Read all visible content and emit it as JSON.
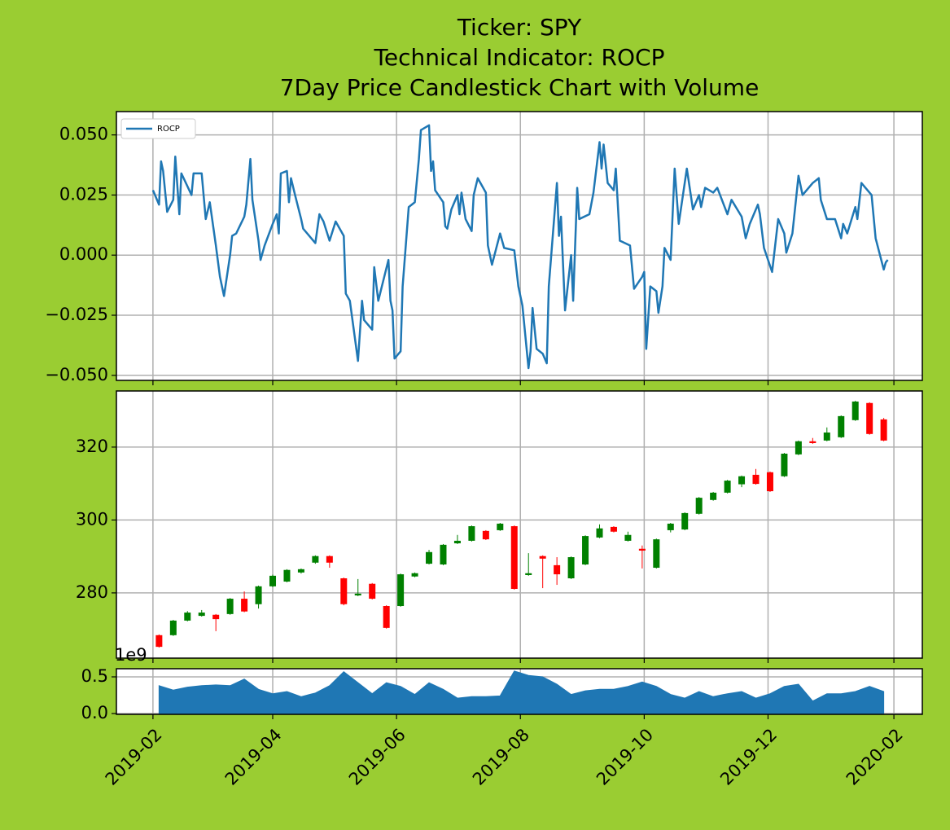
{
  "chart_data": [
    {
      "type": "line",
      "title": [
        "Ticker: SPY",
        "Technical Indicator: ROCP",
        "7Day Price Candlestick Chart with Volume"
      ],
      "legend": "upper left",
      "grid": true,
      "xtick_labels": false,
      "xlim": [
        "2019-01-14",
        "2020-02-15"
      ],
      "xticks": [
        "2019-02",
        "2019-04",
        "2019-06",
        "2019-08",
        "2019-10",
        "2019-12",
        "2020-02"
      ],
      "ylim": [
        -0.0521,
        0.0597
      ],
      "yticks": [
        {
          "value": -0.05,
          "label": "−0.050"
        },
        {
          "value": -0.025,
          "label": "−0.025"
        },
        {
          "value": 0,
          "label": "0.000"
        },
        {
          "value": 0.025,
          "label": "0.025"
        },
        {
          "value": 0.05,
          "label": "0.050"
        }
      ],
      "x": [
        "2019-02-01",
        "2019-02-04",
        "2019-02-05",
        "2019-02-06",
        "2019-02-08",
        "2019-02-11",
        "2019-02-12",
        "2019-02-14",
        "2019-02-15",
        "2019-02-20",
        "2019-02-21",
        "2019-02-25",
        "2019-02-27",
        "2019-03-01",
        "2019-03-04",
        "2019-03-06",
        "2019-03-08",
        "2019-03-11",
        "2019-03-12",
        "2019-03-14",
        "2019-03-18",
        "2019-03-19",
        "2019-03-21",
        "2019-03-22",
        "2019-03-25",
        "2019-03-26",
        "2019-03-28",
        "2019-04-01",
        "2019-04-03",
        "2019-04-04",
        "2019-04-05",
        "2019-04-08",
        "2019-04-09",
        "2019-04-10",
        "2019-04-12",
        "2019-04-15",
        "2019-04-16",
        "2019-04-22",
        "2019-04-24",
        "2019-04-26",
        "2019-04-29",
        "2019-05-02",
        "2019-05-06",
        "2019-05-07",
        "2019-05-09",
        "2019-05-13",
        "2019-05-15",
        "2019-05-16",
        "2019-05-20",
        "2019-05-21",
        "2019-05-23",
        "2019-05-28",
        "2019-05-29",
        "2019-05-30",
        "2019-05-31",
        "2019-06-03",
        "2019-06-04",
        "2019-06-05",
        "2019-06-07",
        "2019-06-10",
        "2019-06-12",
        "2019-06-13",
        "2019-06-17",
        "2019-06-18",
        "2019-06-19",
        "2019-06-20",
        "2019-06-24",
        "2019-06-25",
        "2019-06-26",
        "2019-06-28",
        "2019-07-01",
        "2019-07-02",
        "2019-07-03",
        "2019-07-05",
        "2019-07-08",
        "2019-07-09",
        "2019-07-11",
        "2019-07-15",
        "2019-07-16",
        "2019-07-18",
        "2019-07-22",
        "2019-07-24",
        "2019-07-29",
        "2019-07-31",
        "2019-08-02",
        "2019-08-05",
        "2019-08-06",
        "2019-08-07",
        "2019-08-09",
        "2019-08-12",
        "2019-08-14",
        "2019-08-15",
        "2019-08-19",
        "2019-08-20",
        "2019-08-21",
        "2019-08-23",
        "2019-08-26",
        "2019-08-27",
        "2019-08-29",
        "2019-08-30",
        "2019-09-04",
        "2019-09-06",
        "2019-09-09",
        "2019-09-10",
        "2019-09-11",
        "2019-09-13",
        "2019-09-16",
        "2019-09-17",
        "2019-09-19",
        "2019-09-24",
        "2019-09-26",
        "2019-09-30",
        "2019-10-01",
        "2019-10-02",
        "2019-10-04",
        "2019-10-07",
        "2019-10-08",
        "2019-10-10",
        "2019-10-11",
        "2019-10-14",
        "2019-10-16",
        "2019-10-18",
        "2019-10-22",
        "2019-10-25",
        "2019-10-28",
        "2019-10-29",
        "2019-10-31",
        "2019-11-04",
        "2019-11-06",
        "2019-11-11",
        "2019-11-13",
        "2019-11-18",
        "2019-11-20",
        "2019-11-22",
        "2019-11-26",
        "2019-11-27",
        "2019-11-29",
        "2019-12-03",
        "2019-12-06",
        "2019-12-09",
        "2019-12-10",
        "2019-12-13",
        "2019-12-16",
        "2019-12-18",
        "2019-12-23",
        "2019-12-26",
        "2019-12-27",
        "2019-12-30",
        "2020-01-03",
        "2020-01-06",
        "2020-01-07",
        "2020-01-09",
        "2020-01-13",
        "2020-01-14",
        "2020-01-16",
        "2020-01-21",
        "2020-01-23",
        "2020-01-27",
        "2020-01-28",
        "2020-01-29"
      ],
      "series": [
        {
          "name": "ROCP",
          "color": "#1f77b4",
          "values": [
            0.027,
            0.021,
            0.039,
            0.035,
            0.018,
            0.023,
            0.041,
            0.017,
            0.034,
            0.025,
            0.034,
            0.034,
            0.015,
            0.022,
            0.004,
            -0.009,
            -0.017,
            0,
            0.008,
            0.009,
            0.016,
            0.021,
            0.04,
            0.023,
            0.006,
            -0.002,
            0.004,
            0.013,
            0.017,
            0.009,
            0.034,
            0.035,
            0.022,
            0.032,
            0.025,
            0.015,
            0.011,
            0.005,
            0.017,
            0.014,
            0.006,
            0.014,
            0.008,
            -0.016,
            -0.019,
            -0.044,
            -0.019,
            -0.027,
            -0.031,
            -0.005,
            -0.019,
            -0.002,
            -0.019,
            -0.023,
            -0.043,
            -0.04,
            -0.013,
            -0.002,
            0.02,
            0.022,
            0.04,
            0.052,
            0.054,
            0.035,
            0.039,
            0.027,
            0.022,
            0.012,
            0.011,
            0.019,
            0.025,
            0.017,
            0.026,
            0.015,
            0.01,
            0.025,
            0.032,
            0.026,
            0.004,
            -0.004,
            0.009,
            0.003,
            0.002,
            -0.013,
            -0.021,
            -0.047,
            -0.04,
            -0.022,
            -0.039,
            -0.041,
            -0.045,
            -0.013,
            0.03,
            0.008,
            0.016,
            -0.023,
            0,
            -0.019,
            0.028,
            0.015,
            0.017,
            0.026,
            0.047,
            0.036,
            0.046,
            0.03,
            0.027,
            0.036,
            0.006,
            0.004,
            -0.014,
            -0.009,
            -0.007,
            -0.039,
            -0.013,
            -0.015,
            -0.024,
            -0.013,
            0.003,
            -0.002,
            0.036,
            0.013,
            0.036,
            0.019,
            0.025,
            0.02,
            0.028,
            0.026,
            0.028,
            0.017,
            0.023,
            0.016,
            0.007,
            0.013,
            0.021,
            0.017,
            0.003,
            -0.007,
            0.015,
            0.009,
            0.001,
            0.009,
            0.033,
            0.025,
            0.03,
            0.032,
            0.023,
            0.015,
            0.015,
            0.007,
            0.013,
            0.009,
            0.02,
            0.015,
            0.03,
            0.025,
            0.007,
            -0.006,
            -0.003,
            -0.002
          ]
        }
      ]
    },
    {
      "type": "candlestick",
      "grid": true,
      "xtick_labels": false,
      "up_color": "green",
      "down_color": "red",
      "xlim": [
        "2019-01-14",
        "2020-02-15"
      ],
      "xticks": [
        "2019-02",
        "2019-04",
        "2019-06",
        "2019-08",
        "2019-10",
        "2019-12",
        "2020-02"
      ],
      "ylim": [
        262.1,
        335.4
      ],
      "yticks": [
        280,
        300,
        320
      ],
      "x": [
        "2019-02-04",
        "2019-02-11",
        "2019-02-18",
        "2019-02-25",
        "2019-03-04",
        "2019-03-11",
        "2019-03-18",
        "2019-03-25",
        "2019-04-01",
        "2019-04-08",
        "2019-04-15",
        "2019-04-22",
        "2019-04-29",
        "2019-05-06",
        "2019-05-13",
        "2019-05-20",
        "2019-05-27",
        "2019-06-03",
        "2019-06-10",
        "2019-06-17",
        "2019-06-24",
        "2019-07-01",
        "2019-07-08",
        "2019-07-15",
        "2019-07-22",
        "2019-07-29",
        "2019-08-05",
        "2019-08-12",
        "2019-08-19",
        "2019-08-26",
        "2019-09-02",
        "2019-09-09",
        "2019-09-16",
        "2019-09-23",
        "2019-09-30",
        "2019-10-07",
        "2019-10-14",
        "2019-10-21",
        "2019-10-28",
        "2019-11-04",
        "2019-11-11",
        "2019-11-18",
        "2019-11-25",
        "2019-12-02",
        "2019-12-09",
        "2019-12-16",
        "2019-12-23",
        "2019-12-30",
        "2020-01-06",
        "2020-01-13",
        "2020-01-20",
        "2020-01-27"
      ],
      "open": [
        268.4,
        268.4,
        272.4,
        273.7,
        274.0,
        274.2,
        278.4,
        276.9,
        281.8,
        283.1,
        285.6,
        288.3,
        290.1,
        284.0,
        279.3,
        282.5,
        276.4,
        276.4,
        284.5,
        288.0,
        287.8,
        293.6,
        294.3,
        297.0,
        297.2,
        298.3,
        284.9,
        290.1,
        287.6,
        284.0,
        287.8,
        295.2,
        298.1,
        294.3,
        292.1,
        286.9,
        297.2,
        297.4,
        301.7,
        305.5,
        307.5,
        309.8,
        312.4,
        313.1,
        312.0,
        318.0,
        321.6,
        321.8,
        322.7,
        327.4,
        332.1,
        327.6
      ],
      "high": [
        268.6,
        272.6,
        275.0,
        275.3,
        274.2,
        278.6,
        280.4,
        282.0,
        285.0,
        286.5,
        286.7,
        290.3,
        290.3,
        284.2,
        283.8,
        282.7,
        276.6,
        285.3,
        285.6,
        291.8,
        293.4,
        295.9,
        298.5,
        297.2,
        299.2,
        298.5,
        290.9,
        290.3,
        289.8,
        290.0,
        295.8,
        298.8,
        298.3,
        296.8,
        293.0,
        294.9,
        299.2,
        302.1,
        306.3,
        307.7,
        311.0,
        312.2,
        314.0,
        313.3,
        318.4,
        321.8,
        322.5,
        325.4,
        328.7,
        332.7,
        332.3,
        328.0
      ],
      "low": [
        265.0,
        268.2,
        272.2,
        273.5,
        269.5,
        274.0,
        274.7,
        275.7,
        281.6,
        282.9,
        285.3,
        288.0,
        286.9,
        276.6,
        279.1,
        278.2,
        270.2,
        276.2,
        284.3,
        287.8,
        287.6,
        293.4,
        294.1,
        294.5,
        297.0,
        280.9,
        284.7,
        281.3,
        282.2,
        283.8,
        287.6,
        295.0,
        296.6,
        294.1,
        286.7,
        286.7,
        296.6,
        297.2,
        301.5,
        305.3,
        307.3,
        309.0,
        309.7,
        307.7,
        311.8,
        317.8,
        320.9,
        321.6,
        322.5,
        327.2,
        323.4,
        321.6
      ],
      "close": [
        265.2,
        272.4,
        274.6,
        274.6,
        272.8,
        278.4,
        274.9,
        281.8,
        284.7,
        286.3,
        286.5,
        290.1,
        288.3,
        276.9,
        279.8,
        278.4,
        270.4,
        285.1,
        285.4,
        291.2,
        293.2,
        294.3,
        298.3,
        294.7,
        299.0,
        281.1,
        285.4,
        289.4,
        285.1,
        289.8,
        295.6,
        297.7,
        296.8,
        295.9,
        291.6,
        294.7,
        299.0,
        301.9,
        306.1,
        307.5,
        310.8,
        312.0,
        309.9,
        307.9,
        318.2,
        321.6,
        321.1,
        324.0,
        328.5,
        332.5,
        323.6,
        321.8
      ]
    },
    {
      "type": "area",
      "grid": true,
      "xtick_labels": true,
      "color": "#1f77b4",
      "y_offset_label": "1e9",
      "xlim": [
        "2019-01-14",
        "2020-02-15"
      ],
      "xticks": [
        "2019-02",
        "2019-04",
        "2019-06",
        "2019-08",
        "2019-10",
        "2019-12",
        "2020-02"
      ],
      "ylim": [
        -0.011,
        0.611
      ],
      "yticks": [
        {
          "value": 0,
          "label": "0.0"
        },
        0.5
      ],
      "x": [
        "2019-02-04",
        "2019-02-11",
        "2019-02-18",
        "2019-02-25",
        "2019-03-04",
        "2019-03-11",
        "2019-03-18",
        "2019-03-25",
        "2019-04-01",
        "2019-04-08",
        "2019-04-15",
        "2019-04-22",
        "2019-04-29",
        "2019-05-06",
        "2019-05-13",
        "2019-05-20",
        "2019-05-27",
        "2019-06-03",
        "2019-06-10",
        "2019-06-17",
        "2019-06-24",
        "2019-07-01",
        "2019-07-08",
        "2019-07-15",
        "2019-07-22",
        "2019-07-29",
        "2019-08-05",
        "2019-08-12",
        "2019-08-19",
        "2019-08-26",
        "2019-09-02",
        "2019-09-09",
        "2019-09-16",
        "2019-09-23",
        "2019-09-30",
        "2019-10-07",
        "2019-10-14",
        "2019-10-21",
        "2019-10-28",
        "2019-11-04",
        "2019-11-11",
        "2019-11-18",
        "2019-11-25",
        "2019-12-02",
        "2019-12-09",
        "2019-12-16",
        "2019-12-23",
        "2019-12-30",
        "2020-01-06",
        "2020-01-13",
        "2020-01-20",
        "2020-01-27"
      ],
      "values": [
        0.38,
        0.32,
        0.36,
        0.38,
        0.39,
        0.38,
        0.47,
        0.33,
        0.27,
        0.3,
        0.23,
        0.28,
        0.38,
        0.57,
        0.42,
        0.27,
        0.42,
        0.37,
        0.26,
        0.42,
        0.33,
        0.21,
        0.23,
        0.23,
        0.24,
        0.58,
        0.52,
        0.5,
        0.4,
        0.26,
        0.31,
        0.33,
        0.33,
        0.37,
        0.43,
        0.37,
        0.26,
        0.21,
        0.3,
        0.23,
        0.27,
        0.3,
        0.21,
        0.27,
        0.37,
        0.4,
        0.17,
        0.27,
        0.27,
        0.3,
        0.37,
        0.3
      ]
    }
  ]
}
